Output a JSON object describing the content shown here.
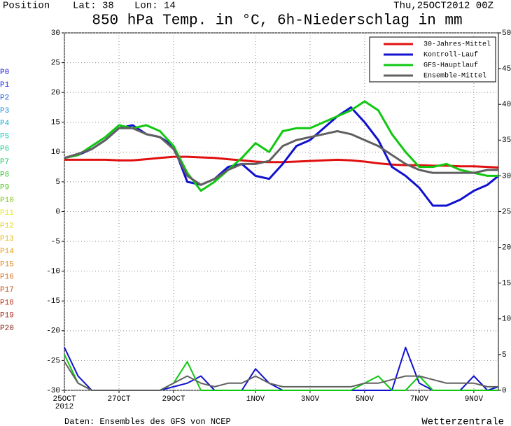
{
  "header": {
    "position": "Position",
    "lat": "Lat: 38",
    "lon": "Lon: 14",
    "run": "Thu,25OCT2012 00Z"
  },
  "footer": {
    "source": "Daten: Ensembles des GFS von NCEP",
    "brand": "Wetterzentrale"
  },
  "chart_data": {
    "type": "line",
    "title": "850 hPa Temp. in °C, 6h-Niederschlag in mm",
    "x": [
      0,
      0.5,
      1,
      1.5,
      2,
      2.5,
      3,
      3.5,
      4,
      4.5,
      5,
      5.5,
      6,
      6.5,
      7,
      7.5,
      8,
      8.5,
      9,
      9.5,
      10,
      10.5,
      11,
      11.5,
      12,
      12.5,
      13,
      13.5,
      14,
      14.5,
      15,
      15.5,
      15.9
    ],
    "xlim": [
      0,
      15.9
    ],
    "xticks": [
      {
        "value": 0,
        "label": "25OCT"
      },
      {
        "value": 2,
        "label": "27OCT"
      },
      {
        "value": 4,
        "label": "29OCT"
      },
      {
        "value": 7,
        "label": "1NOV"
      },
      {
        "value": 9,
        "label": "3NOV"
      },
      {
        "value": 11,
        "label": "5NOV"
      },
      {
        "value": 13,
        "label": "7NOV"
      },
      {
        "value": 15,
        "label": "9NOV"
      }
    ],
    "x_year_label": "2012",
    "ylim": [
      -30,
      30
    ],
    "yticks": [
      -30,
      -25,
      -20,
      -15,
      -10,
      -5,
      0,
      5,
      10,
      15,
      20,
      25,
      30
    ],
    "y2lim": [
      0,
      50
    ],
    "y2ticks": [
      0,
      5,
      10,
      15,
      20,
      25,
      30,
      35,
      40,
      45,
      50
    ],
    "grid": true,
    "legend": "upper right",
    "series": [
      {
        "name": "30-Jahres-Mittel",
        "color": "#e01010",
        "values": [
          8.7,
          8.7,
          8.7,
          8.7,
          8.6,
          8.6,
          8.8,
          9,
          9.2,
          9.2,
          9.1,
          9,
          8.8,
          8.6,
          8.4,
          8.3,
          8.3,
          8.4,
          8.5,
          8.6,
          8.7,
          8.6,
          8.4,
          8.1,
          7.9,
          7.8,
          7.8,
          7.7,
          7.7,
          7.6,
          7.6,
          7.5,
          7.4
        ]
      },
      {
        "name": "Kontroll-Lauf",
        "color": "#1010d0",
        "values": [
          9,
          9.5,
          10.5,
          12,
          14,
          14.5,
          13,
          12.5,
          11,
          5,
          4.5,
          5.5,
          7.5,
          8,
          6,
          5.5,
          8,
          11,
          12,
          14,
          16,
          17.5,
          15,
          12,
          7.5,
          6,
          4,
          1,
          1,
          2,
          3.5,
          4.5,
          6
        ]
      },
      {
        "name": "GFS-Hauptlauf",
        "color": "#10c810",
        "values": [
          9,
          9.5,
          11,
          12.5,
          14.5,
          14,
          14.5,
          13.5,
          11,
          6.5,
          3.5,
          5,
          7,
          9,
          11.5,
          10,
          13.5,
          14,
          14,
          15,
          16,
          17,
          18.5,
          17,
          13,
          10,
          7.5,
          7.5,
          8,
          7,
          6.5,
          6,
          6
        ]
      },
      {
        "name": "Ensemble-Mittel",
        "color": "#606060",
        "values": [
          9,
          9.7,
          10.5,
          12,
          14,
          14,
          13,
          12.5,
          10.5,
          6,
          4.5,
          5.5,
          7,
          8,
          8,
          8.5,
          11,
          12,
          12.5,
          13,
          13.5,
          13,
          12,
          11,
          9.5,
          8,
          7,
          6.5,
          6.5,
          6.5,
          6.5,
          7,
          7
        ]
      }
    ],
    "precip_series": [
      {
        "color": "#1010d0",
        "axis": "y2",
        "values": [
          6,
          2,
          0,
          0,
          0,
          0,
          0,
          0,
          0.5,
          1,
          2,
          0,
          0,
          0,
          3,
          1,
          0,
          0,
          0,
          0,
          0,
          0,
          0,
          0,
          0,
          6,
          1,
          0,
          0,
          0,
          2,
          0,
          0.5
        ]
      },
      {
        "color": "#10c810",
        "axis": "y2",
        "values": [
          5,
          1,
          0,
          0,
          0,
          0,
          0,
          0,
          1,
          4,
          0,
          0,
          0,
          0,
          0,
          0,
          0,
          0,
          0,
          0,
          0,
          0,
          1,
          2,
          0,
          0,
          2,
          0,
          0,
          0,
          0,
          0,
          0
        ]
      },
      {
        "color": "#606060",
        "axis": "y2",
        "values": [
          4,
          1,
          0,
          0,
          0,
          0,
          0,
          0,
          1,
          2,
          1,
          0.5,
          1,
          1,
          2,
          1,
          0.5,
          0.5,
          0.5,
          0.5,
          0.5,
          0.5,
          1,
          1,
          1.5,
          2,
          2,
          1.5,
          1,
          1,
          1,
          0.5,
          0.5
        ]
      }
    ],
    "members": [
      {
        "name": "P0",
        "color": "#1818e0"
      },
      {
        "name": "P1",
        "color": "#1830e0"
      },
      {
        "name": "P2",
        "color": "#1860e0"
      },
      {
        "name": "P3",
        "color": "#1890e0"
      },
      {
        "name": "P4",
        "color": "#18b0d8"
      },
      {
        "name": "P5",
        "color": "#18c8c0"
      },
      {
        "name": "P6",
        "color": "#18c890"
      },
      {
        "name": "P7",
        "color": "#18c860"
      },
      {
        "name": "P8",
        "color": "#30c830"
      },
      {
        "name": "P9",
        "color": "#50c818"
      },
      {
        "name": "P10",
        "color": "#80c818"
      },
      {
        "name": "P11",
        "color": "#e8e818"
      },
      {
        "name": "P12",
        "color": "#e8d018"
      },
      {
        "name": "P13",
        "color": "#e8b818"
      },
      {
        "name": "P14",
        "color": "#e8a018"
      },
      {
        "name": "P15",
        "color": "#e08818"
      },
      {
        "name": "P16",
        "color": "#d87018"
      },
      {
        "name": "P17",
        "color": "#c85018"
      },
      {
        "name": "P18",
        "color": "#b83818"
      },
      {
        "name": "P19",
        "color": "#a02818"
      },
      {
        "name": "P20",
        "color": "#882018"
      }
    ]
  }
}
